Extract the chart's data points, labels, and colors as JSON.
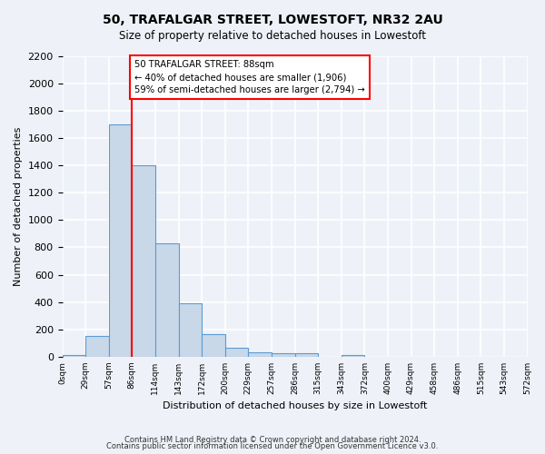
{
  "title": "50, TRAFALGAR STREET, LOWESTOFT, NR32 2AU",
  "subtitle": "Size of property relative to detached houses in Lowestoft",
  "xlabel": "Distribution of detached houses by size in Lowestoft",
  "ylabel": "Number of detached properties",
  "bin_labels": [
    "0sqm",
    "29sqm",
    "57sqm",
    "86sqm",
    "114sqm",
    "143sqm",
    "172sqm",
    "200sqm",
    "229sqm",
    "257sqm",
    "286sqm",
    "315sqm",
    "343sqm",
    "372sqm",
    "400sqm",
    "429sqm",
    "458sqm",
    "486sqm",
    "515sqm",
    "543sqm",
    "572sqm"
  ],
  "bar_values": [
    15,
    155,
    1700,
    1400,
    830,
    390,
    165,
    65,
    35,
    25,
    25,
    0,
    15,
    0,
    0,
    0,
    0,
    0,
    0,
    0
  ],
  "bar_color": "#c8d8e8",
  "bar_edge_color": "#5b9bd5",
  "vline_x": 3,
  "vline_color": "red",
  "annotation_text": "50 TRAFALGAR STREET: 88sqm\n← 40% of detached houses are smaller (1,906)\n59% of semi-detached houses are larger (2,794) →",
  "annotation_box_color": "white",
  "annotation_box_edge_color": "red",
  "ylim": [
    0,
    2200
  ],
  "yticks": [
    0,
    200,
    400,
    600,
    800,
    1000,
    1200,
    1400,
    1600,
    1800,
    2000,
    2200
  ],
  "footer_line1": "Contains HM Land Registry data © Crown copyright and database right 2024.",
  "footer_line2": "Contains public sector information licensed under the Open Government Licence v3.0.",
  "bg_color": "#eef2f8",
  "grid_color": "white"
}
